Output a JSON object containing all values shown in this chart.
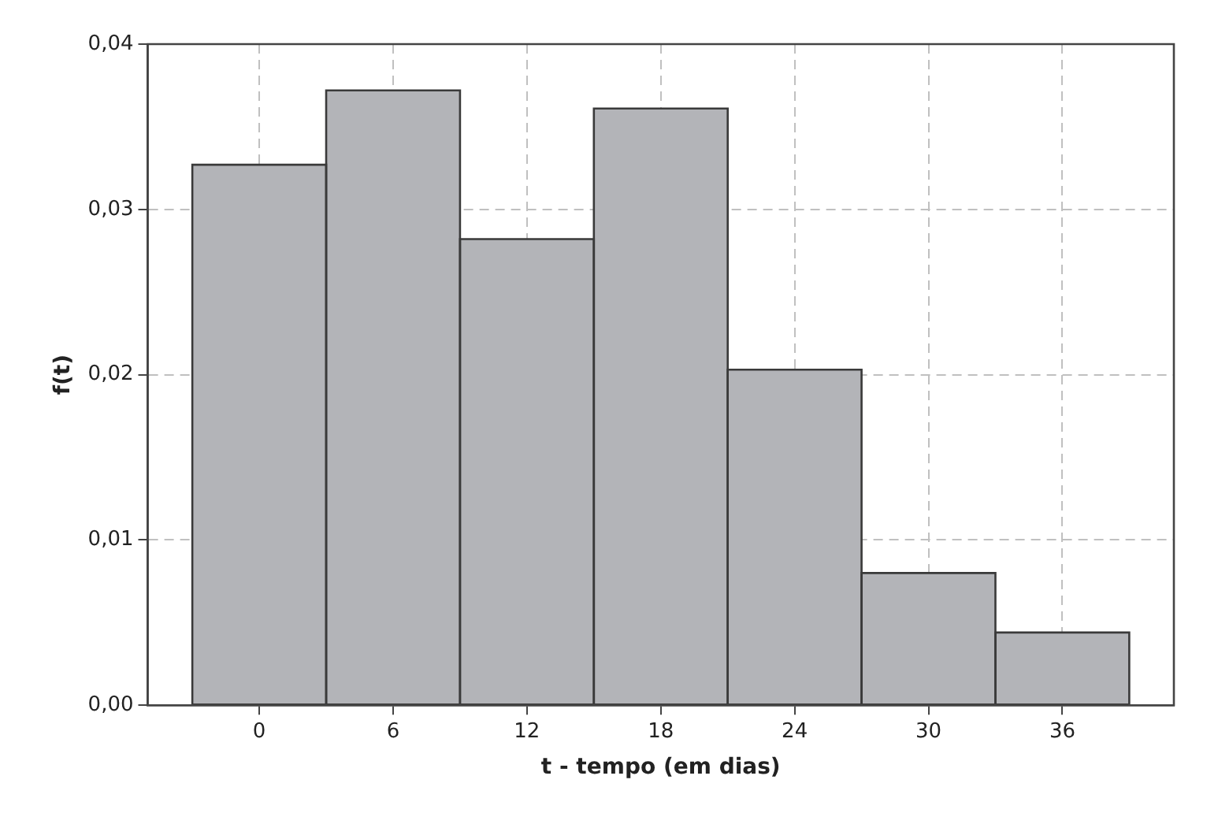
{
  "chart_data": {
    "type": "histogram",
    "xlabel": "t - tempo (em dias)",
    "ylabel": "f(t)",
    "bins": [
      -3,
      3,
      9,
      15,
      21,
      27,
      33,
      39
    ],
    "values": [
      0.0327,
      0.0372,
      0.0282,
      0.0361,
      0.0203,
      0.008,
      0.0044
    ],
    "color": "#b3b4b8",
    "xlim": [
      -5,
      41
    ],
    "xticks": [
      0,
      6,
      12,
      18,
      24,
      30,
      36
    ],
    "ylim": [
      0,
      0.04
    ],
    "yticks": [
      {
        "value": 0,
        "label": "0,00"
      },
      {
        "value": 0.01,
        "label": "0,01"
      },
      {
        "value": 0.02,
        "label": "0,02"
      },
      {
        "value": 0.03,
        "label": "0,03"
      },
      {
        "value": 0.04,
        "label": "0,04"
      }
    ],
    "grid": true
  }
}
